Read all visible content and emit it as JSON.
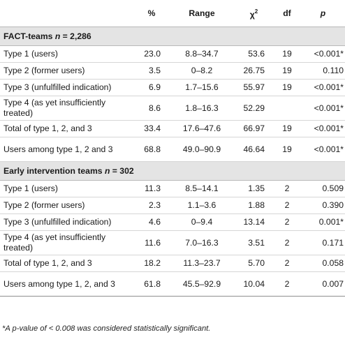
{
  "headers": {
    "label": "",
    "pct": "%",
    "range": "Range",
    "chi": "χ",
    "chi_sup": "2",
    "df": "df",
    "p": "p"
  },
  "sections": [
    {
      "title_prefix": "FACT-teams ",
      "title_n": "n",
      "title_suffix": " = 2,286",
      "rows": [
        {
          "label": "Type 1 (users)",
          "pct": "23.0",
          "range": "8.8–34.7",
          "chi": "53.6",
          "df": "19",
          "p": "<0.001*"
        },
        {
          "label": "Type 2 (former users)",
          "pct": "3.5",
          "range": "0–8.2",
          "chi": "26.75",
          "df": "19",
          "p": "0.110"
        },
        {
          "label": "Type 3 (unfulfilled indication)",
          "pct": "6.9",
          "range": "1.7–15.6",
          "chi": "55.97",
          "df": "19",
          "p": "<0.001*"
        },
        {
          "label": "Type 4 (as yet insufficiently treated)",
          "pct": "8.6",
          "range": "1.8–16.3",
          "chi": "52.29",
          "df": "",
          "p": "<0.001*"
        },
        {
          "label": "Total of type 1, 2, and 3",
          "pct": "33.4",
          "range": "17.6–47.6",
          "chi": "66.97",
          "df": "19",
          "p": "<0.001*"
        },
        {
          "label": "Users among type 1, 2 and 3",
          "pct": "68.8",
          "range": "49.0–90.9",
          "chi": "46.64",
          "df": "19",
          "p": "<0.001*"
        }
      ]
    },
    {
      "title_prefix": "Early intervention teams ",
      "title_n": "n",
      "title_suffix": " = 302",
      "rows": [
        {
          "label": "Type 1 (users)",
          "pct": "11.3",
          "range": "8.5–14.1",
          "chi": "1.35",
          "df": "2",
          "p": "0.509"
        },
        {
          "label": "Type 2 (former users)",
          "pct": "2.3",
          "range": "1.1–3.6",
          "chi": "1.88",
          "df": "2",
          "p": "0.390"
        },
        {
          "label": "Type 3 (unfulfilled indication)",
          "pct": "4.6",
          "range": "0–9.4",
          "chi": "13.14",
          "df": "2",
          "p": "0.001*"
        },
        {
          "label": "Type 4 (as yet insufficiently treated)",
          "pct": "11.6",
          "range": "7.0–16.3",
          "chi": "3.51",
          "df": "2",
          "p": "0.171"
        },
        {
          "label": "Total of type 1, 2, and 3",
          "pct": "18.2",
          "range": "11.3–23.7",
          "chi": "5.70",
          "df": "2",
          "p": "0.058"
        },
        {
          "label": "Users among type 1, 2, and 3",
          "pct": "61.8",
          "range": "45.5–92.9",
          "chi": "10.04",
          "df": "2",
          "p": "0.007"
        }
      ]
    }
  ],
  "footnote": "*A p-value of < 0.008 was considered statistically significant."
}
